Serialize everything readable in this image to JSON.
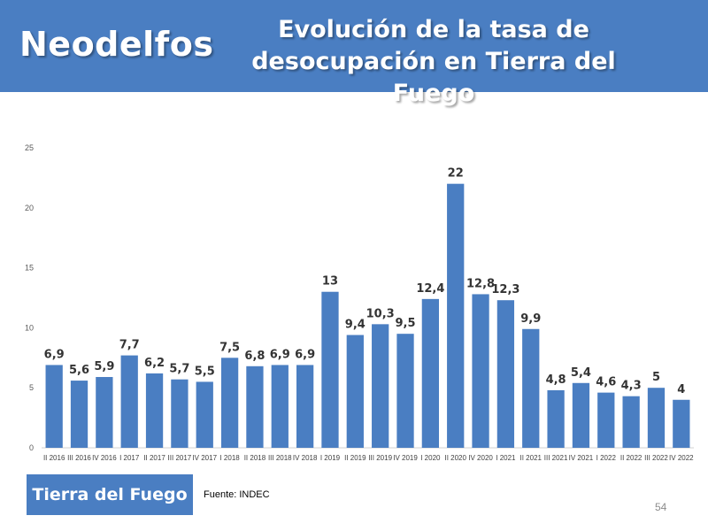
{
  "header": {
    "brand": "Neodelfos",
    "title_line1": "Evolución de la tasa de",
    "title_line2": "desocupación en Tierra del Fuego"
  },
  "footer": {
    "region": "Tierra del Fuego",
    "source": "Fuente: INDEC",
    "page_number": "54"
  },
  "colors": {
    "header_bg": "#4a7ec2",
    "bar": "#4a7ec2"
  },
  "chart_data": {
    "type": "bar",
    "title": "",
    "xlabel": "",
    "ylabel": "",
    "ylim": [
      0,
      25
    ],
    "yticks": [
      0,
      5,
      10,
      15,
      20,
      25
    ],
    "grid": false,
    "legend": "none",
    "categories": [
      "II 2016",
      "III 2016",
      "IV 2016",
      "I 2017",
      "II 2017",
      "III 2017",
      "IV 2017",
      "I 2018",
      "II 2018",
      "III 2018",
      "IV 2018",
      "I 2019",
      "II 2019",
      "III 2019",
      "IV 2019",
      "I 2020",
      "II 2020",
      "IV 2020",
      "I 2021",
      "II 2021",
      "III 2021",
      "IV 2021",
      "I 2022",
      "II 2022",
      "III 2022",
      "IV 2022"
    ],
    "values": [
      6.9,
      5.6,
      5.9,
      7.7,
      6.2,
      5.7,
      5.5,
      7.5,
      6.8,
      6.9,
      6.9,
      13,
      9.4,
      10.3,
      9.5,
      12.4,
      22,
      12.8,
      12.3,
      9.9,
      4.8,
      5.4,
      4.6,
      4.3,
      5,
      4
    ],
    "labels": [
      "6,9",
      "5,6",
      "5,9",
      "7,7",
      "6,2",
      "5,7",
      "5,5",
      "7,5",
      "6,8",
      "6,9",
      "6,9",
      "13",
      "9,4",
      "10,3",
      "9,5",
      "12,4",
      "22",
      "12,8",
      "12,3",
      "9,9",
      "4,8",
      "5,4",
      "4,6",
      "4,3",
      "5",
      "4"
    ]
  }
}
